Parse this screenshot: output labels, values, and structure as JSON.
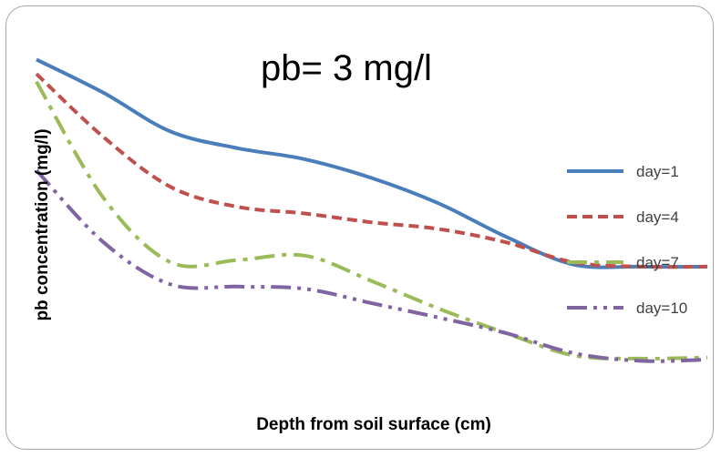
{
  "chart_data": {
    "type": "line",
    "title": "pb= 3 mg/l",
    "xlabel": "Depth from soil surface (cm)",
    "ylabel": "pb concentration (mg/l)",
    "x": [
      0,
      1,
      2,
      3,
      4,
      5,
      6,
      7,
      8,
      9,
      10
    ],
    "y_range": [
      0,
      3
    ],
    "grid": false,
    "legend_position": "right",
    "series": [
      {
        "name": "day=1",
        "color": "#4a7ebb",
        "dash": "solid",
        "values": [
          2.75,
          2.45,
          2.1,
          1.95,
          1.85,
          1.68,
          1.45,
          1.15,
          0.9,
          0.88,
          0.88
        ]
      },
      {
        "name": "day=4",
        "color": "#c0504d",
        "dash": "dash",
        "values": [
          2.62,
          2.05,
          1.6,
          1.42,
          1.36,
          1.28,
          1.22,
          1.1,
          0.92,
          0.88,
          0.88
        ]
      },
      {
        "name": "day=7",
        "color": "#9bbb59",
        "dash": "dash-dot",
        "values": [
          2.55,
          1.5,
          0.92,
          0.94,
          0.98,
          0.75,
          0.5,
          0.28,
          0.08,
          0.05,
          0.06
        ]
      },
      {
        "name": "day=10",
        "color": "#8064a2",
        "dash": "dash-dot-dot",
        "values": [
          1.75,
          1.1,
          0.72,
          0.7,
          0.68,
          0.55,
          0.42,
          0.28,
          0.1,
          0.03,
          0.04
        ]
      }
    ]
  }
}
